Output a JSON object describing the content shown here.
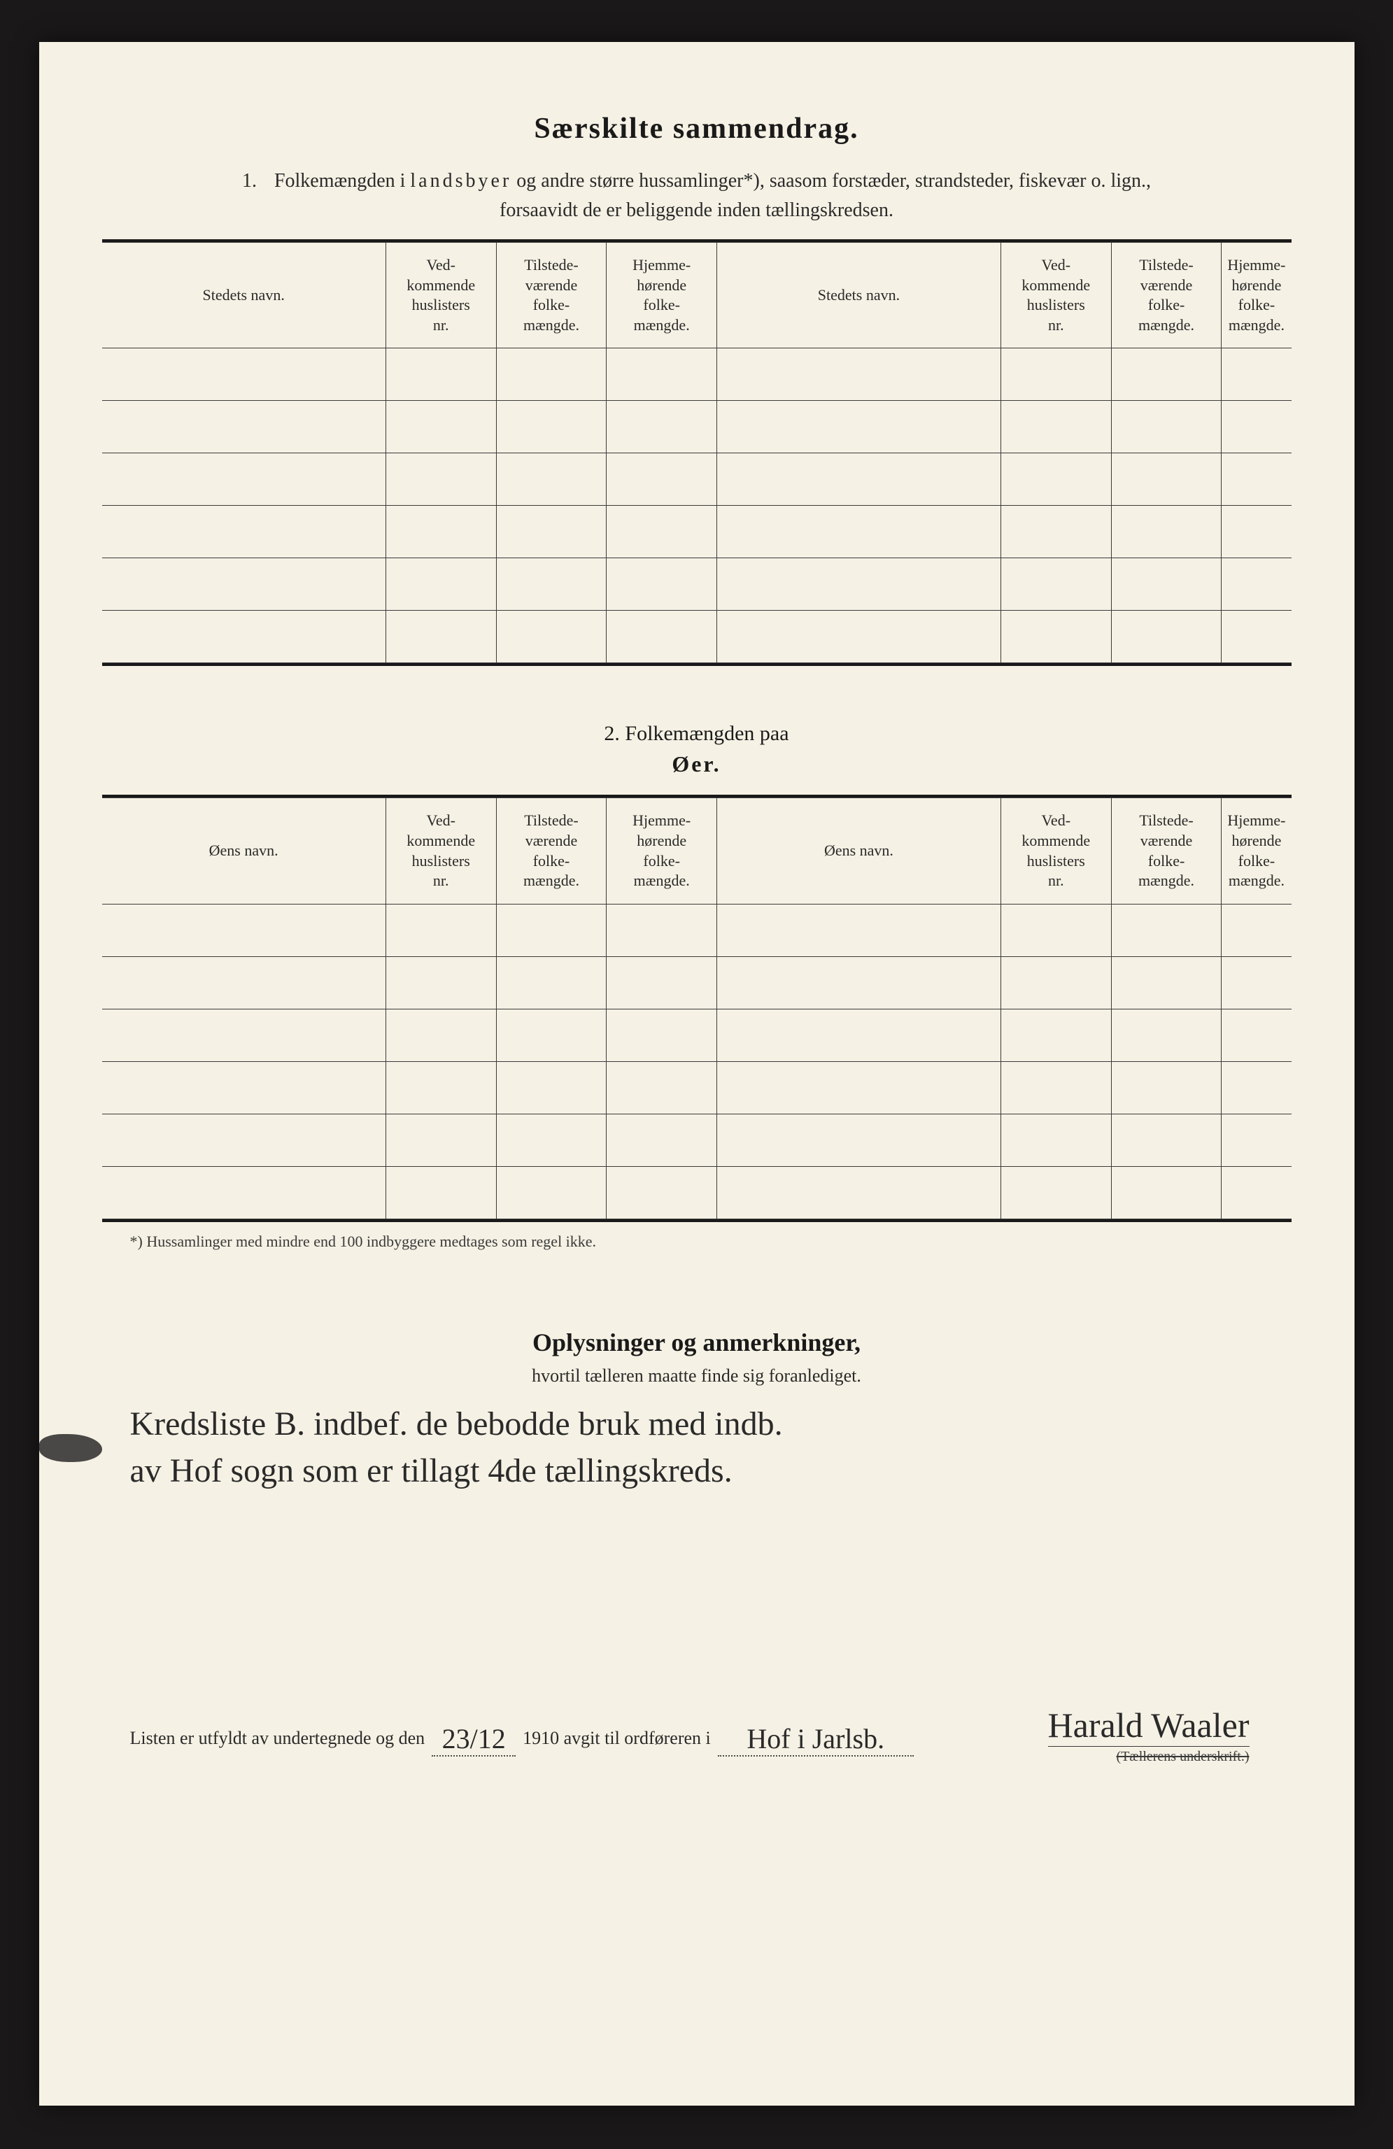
{
  "page": {
    "background_color": "#1a1818",
    "paper_color": "#f5f1e4",
    "text_color": "#1a1a1a",
    "border_color": "#3a3a3a"
  },
  "header": {
    "main_title": "Særskilte sammendrag.",
    "section1_num": "1.",
    "section1_text_a": "Folkemængden i ",
    "section1_text_b": "landsbyer",
    "section1_text_c": " og andre større hussamlinger*), saasom forstæder, strandsteder, fiskevær o. lign.,",
    "section1_line2": "forsaavidt de er beliggende inden tællingskredsen."
  },
  "table1": {
    "columns": {
      "c1": "Stedets navn.",
      "c2": "Ved-\nkommende\nhuslisters\nnr.",
      "c3": "Tilstede-\nværende\nfolke-\nmængde.",
      "c4": "Hjemme-\nhørende\nfolke-\nmængde.",
      "c5": "Stedets navn.",
      "c6": "Ved-\nkommende\nhuslisters\nnr.",
      "c7": "Tilstede-\nværende\nfolke-\nmængde.",
      "c8": "Hjemme-\nhørende\nfolke-\nmængde."
    },
    "row_count": 6
  },
  "section2": {
    "title_line1": "2.    Folkemængden paa",
    "title_line2": "Øer."
  },
  "table2": {
    "columns": {
      "c1": "Øens navn.",
      "c2": "Ved-\nkommende\nhuslisters\nnr.",
      "c3": "Tilstede-\nværende\nfolke-\nmængde.",
      "c4": "Hjemme-\nhørende\nfolke-\nmængde.",
      "c5": "Øens navn.",
      "c6": "Ved-\nkommende\nhuslisters\nnr.",
      "c7": "Tilstede-\nværende\nfolke-\nmængde.",
      "c8": "Hjemme-\nhørende\nfolke-\nmængde."
    },
    "row_count": 6
  },
  "footnote": "*) Hussamlinger med mindre end 100 indbyggere medtages som regel ikke.",
  "remarks": {
    "title": "Oplysninger og anmerkninger,",
    "subtitle": "hvortil tælleren maatte finde sig foranlediget.",
    "handwriting_line1": "Kredsliste B. indbef. de bebodde bruk med indb.",
    "handwriting_line2": "av Hof sogn som er tillagt 4de tællingskreds."
  },
  "signoff": {
    "prefix": "Listen er utfyldt av undertegnede og den",
    "date": "23/12",
    "year_text": "1910 avgit til ordføreren i",
    "place": "Hof i Jarlsb.",
    "signature": "Harald Waaler",
    "sig_label": "(Tællerens underskrift.)"
  }
}
